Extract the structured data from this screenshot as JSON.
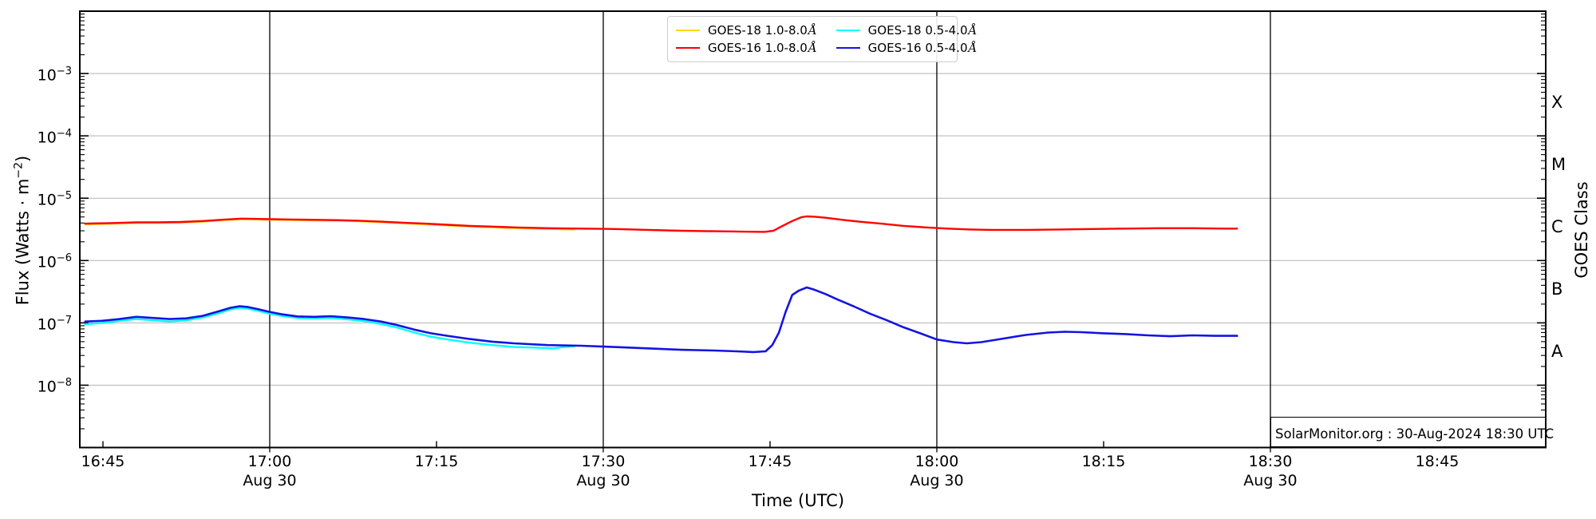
{
  "axes": {
    "xlabel": "Time (UTC)",
    "ylabel": {
      "prefix": "Flux (Watts · m",
      "sup": "−2",
      "suffix": ")"
    },
    "right_label": "GOES Class",
    "x_ticks": [
      {
        "t": 45,
        "label": "16:45",
        "sublabel": "",
        "major": false
      },
      {
        "t": 60,
        "label": "17:00",
        "sublabel": "Aug 30",
        "major": true
      },
      {
        "t": 75,
        "label": "17:15",
        "sublabel": "",
        "major": false
      },
      {
        "t": 90,
        "label": "17:30",
        "sublabel": "Aug 30",
        "major": true
      },
      {
        "t": 105,
        "label": "17:45",
        "sublabel": "",
        "major": false
      },
      {
        "t": 120,
        "label": "18:00",
        "sublabel": "Aug 30",
        "major": true
      },
      {
        "t": 135,
        "label": "18:15",
        "sublabel": "",
        "major": false
      },
      {
        "t": 150,
        "label": "18:30",
        "sublabel": "Aug 30",
        "major": true
      },
      {
        "t": 165,
        "label": "18:45",
        "sublabel": "",
        "major": false
      }
    ],
    "y_tick_exponents": [
      -3,
      -4,
      -5,
      -6,
      -7,
      -8
    ],
    "goes_classes": [
      {
        "label": "X",
        "mid_exponent": -3.5
      },
      {
        "label": "M",
        "mid_exponent": -4.5
      },
      {
        "label": "C",
        "mid_exponent": -5.5
      },
      {
        "label": "B",
        "mid_exponent": -6.5
      },
      {
        "label": "A",
        "mid_exponent": -7.5
      }
    ]
  },
  "legend": {
    "items": [
      {
        "label": "GOES-18 1.0-8.0",
        "angstrom": "Å",
        "color": "#ffd700",
        "key": "goes18-long"
      },
      {
        "label": "GOES-16 1.0-8.0",
        "angstrom": "Å",
        "color": "#ff0000",
        "key": "goes16-long"
      },
      {
        "label": "GOES-18 0.5-4.0",
        "angstrom": "Å",
        "color": "#00ffff",
        "key": "goes18-short"
      },
      {
        "label": "GOES-16 0.5-4.0",
        "angstrom": "Å",
        "color": "#1414e0",
        "key": "goes16-short"
      }
    ]
  },
  "watermark": "SolarMonitor.org : 30-Aug-2024 18:30 UTC",
  "colors": {
    "grid_horizontal": "#b3b3b3",
    "grid_vertical": "#000000",
    "frame": "#000000",
    "background": "#ffffff"
  },
  "chart_data": {
    "type": "line",
    "title": "",
    "xlabel": "Time (UTC)",
    "ylabel": "Flux (Watts · m⁻²)",
    "ylabel_right": "GOES Class",
    "x_unit": "decimal minutes after 16:00 UTC, Aug 30 2024",
    "y_unit": "W m^-2 (log scale)",
    "xlim_minutes": [
      43.4,
      174.6
    ],
    "ylim": [
      1e-09,
      0.01
    ],
    "grid": {
      "horizontal_decades": true,
      "vertical_30min": true
    },
    "legend_position": "top-center",
    "series": [
      {
        "name": "GOES-18 1.0-8.0Å",
        "color": "#ffd700",
        "width": 2.2,
        "points": [
          [
            43.4,
            3.8e-06
          ],
          [
            46,
            3.9e-06
          ],
          [
            48,
            4e-06
          ],
          [
            50,
            4e-06
          ],
          [
            52,
            4.05e-06
          ],
          [
            54,
            4.2e-06
          ],
          [
            56,
            4.45e-06
          ],
          [
            57.5,
            4.6e-06
          ],
          [
            59,
            4.55e-06
          ],
          [
            60,
            4.5e-06
          ],
          [
            62,
            4.45e-06
          ],
          [
            64,
            4.4e-06
          ],
          [
            66,
            4.35e-06
          ],
          [
            68,
            4.25e-06
          ],
          [
            70,
            4.1e-06
          ],
          [
            72,
            3.95e-06
          ],
          [
            74,
            3.8e-06
          ],
          [
            76,
            3.65e-06
          ],
          [
            78,
            3.5e-06
          ],
          [
            80,
            3.4e-06
          ],
          [
            82,
            3.3e-06
          ],
          [
            85,
            3.2e-06
          ],
          [
            87.4,
            3.15e-06
          ]
        ]
      },
      {
        "name": "GOES-16 1.0-8.0Å",
        "color": "#ff0000",
        "width": 2.4,
        "points": [
          [
            43.4,
            3.9e-06
          ],
          [
            46,
            4e-06
          ],
          [
            48,
            4.1e-06
          ],
          [
            50,
            4.1e-06
          ],
          [
            52,
            4.15e-06
          ],
          [
            54,
            4.3e-06
          ],
          [
            56,
            4.55e-06
          ],
          [
            57.5,
            4.7e-06
          ],
          [
            59,
            4.65e-06
          ],
          [
            60,
            4.6e-06
          ],
          [
            62,
            4.55e-06
          ],
          [
            64,
            4.5e-06
          ],
          [
            66,
            4.45e-06
          ],
          [
            68,
            4.35e-06
          ],
          [
            70,
            4.2e-06
          ],
          [
            72,
            4.05e-06
          ],
          [
            74,
            3.9e-06
          ],
          [
            76,
            3.75e-06
          ],
          [
            78,
            3.6e-06
          ],
          [
            80,
            3.5e-06
          ],
          [
            82,
            3.4e-06
          ],
          [
            85,
            3.3e-06
          ],
          [
            88,
            3.25e-06
          ],
          [
            91,
            3.2e-06
          ],
          [
            94,
            3.1e-06
          ],
          [
            97,
            3e-06
          ],
          [
            100,
            2.95e-06
          ],
          [
            103,
            2.9e-06
          ],
          [
            104.5,
            2.88e-06
          ],
          [
            105.3,
            3e-06
          ],
          [
            106,
            3.5e-06
          ],
          [
            107,
            4.3e-06
          ],
          [
            107.8,
            4.95e-06
          ],
          [
            108.3,
            5.1e-06
          ],
          [
            109,
            5.05e-06
          ],
          [
            110,
            4.85e-06
          ],
          [
            111.5,
            4.5e-06
          ],
          [
            113,
            4.2e-06
          ],
          [
            115,
            3.9e-06
          ],
          [
            117,
            3.6e-06
          ],
          [
            119,
            3.4e-06
          ],
          [
            121,
            3.25e-06
          ],
          [
            123,
            3.15e-06
          ],
          [
            125,
            3.1e-06
          ],
          [
            128,
            3.1e-06
          ],
          [
            131,
            3.15e-06
          ],
          [
            134,
            3.2e-06
          ],
          [
            137,
            3.25e-06
          ],
          [
            140,
            3.3e-06
          ],
          [
            143,
            3.3e-06
          ],
          [
            146,
            3.25e-06
          ],
          [
            147,
            3.25e-06
          ]
        ]
      },
      {
        "name": "GOES-18 0.5-4.0Å",
        "color": "#00ffff",
        "width": 2.4,
        "points": [
          [
            43.4,
            9.5e-08
          ],
          [
            45,
            1e-07
          ],
          [
            46.5,
            1.08e-07
          ],
          [
            48,
            1.15e-07
          ],
          [
            49.5,
            1.1e-07
          ],
          [
            51,
            1.05e-07
          ],
          [
            52.5,
            1.1e-07
          ],
          [
            54,
            1.22e-07
          ],
          [
            55.5,
            1.45e-07
          ],
          [
            56.5,
            1.65e-07
          ],
          [
            57.3,
            1.75e-07
          ],
          [
            58,
            1.7e-07
          ],
          [
            59,
            1.55e-07
          ],
          [
            60,
            1.4e-07
          ],
          [
            61,
            1.3e-07
          ],
          [
            62.5,
            1.2e-07
          ],
          [
            64,
            1.18e-07
          ],
          [
            65.5,
            1.2e-07
          ],
          [
            67,
            1.14e-07
          ],
          [
            68.5,
            1.07e-07
          ],
          [
            70,
            9.6e-08
          ],
          [
            71.5,
            8.4e-08
          ],
          [
            73,
            7e-08
          ],
          [
            74.5,
            6e-08
          ],
          [
            76,
            5.4e-08
          ],
          [
            78,
            4.8e-08
          ],
          [
            80,
            4.4e-08
          ],
          [
            82,
            4.1e-08
          ],
          [
            84,
            4e-08
          ],
          [
            85.5,
            3.9e-08
          ],
          [
            86.5,
            4.1e-08
          ],
          [
            87.4,
            4.2e-08
          ]
        ]
      },
      {
        "name": "GOES-16 0.5-4.0Å",
        "color": "#1414e0",
        "width": 2.6,
        "points": [
          [
            43.4,
            1.05e-07
          ],
          [
            45,
            1.08e-07
          ],
          [
            46.5,
            1.15e-07
          ],
          [
            48,
            1.25e-07
          ],
          [
            49.5,
            1.2e-07
          ],
          [
            51,
            1.15e-07
          ],
          [
            52.5,
            1.18e-07
          ],
          [
            54,
            1.3e-07
          ],
          [
            55.5,
            1.55e-07
          ],
          [
            56.5,
            1.75e-07
          ],
          [
            57.3,
            1.85e-07
          ],
          [
            58,
            1.8e-07
          ],
          [
            59,
            1.65e-07
          ],
          [
            60,
            1.5e-07
          ],
          [
            61,
            1.38e-07
          ],
          [
            62.5,
            1.27e-07
          ],
          [
            64,
            1.25e-07
          ],
          [
            65.5,
            1.28e-07
          ],
          [
            67,
            1.22e-07
          ],
          [
            68.5,
            1.15e-07
          ],
          [
            70,
            1.05e-07
          ],
          [
            71.5,
            9.2e-08
          ],
          [
            73,
            7.8e-08
          ],
          [
            74.5,
            6.8e-08
          ],
          [
            76,
            6.2e-08
          ],
          [
            78,
            5.5e-08
          ],
          [
            80,
            5e-08
          ],
          [
            82,
            4.7e-08
          ],
          [
            85,
            4.4e-08
          ],
          [
            88,
            4.3e-08
          ],
          [
            91,
            4.1e-08
          ],
          [
            94,
            3.9e-08
          ],
          [
            97,
            3.7e-08
          ],
          [
            100,
            3.6e-08
          ],
          [
            102,
            3.5e-08
          ],
          [
            103.5,
            3.4e-08
          ],
          [
            104.6,
            3.5e-08
          ],
          [
            105.2,
            4.4e-08
          ],
          [
            105.8,
            7e-08
          ],
          [
            106.4,
            1.5e-07
          ],
          [
            107,
            2.8e-07
          ],
          [
            107.6,
            3.3e-07
          ],
          [
            108.3,
            3.7e-07
          ],
          [
            109,
            3.4e-07
          ],
          [
            110,
            2.9e-07
          ],
          [
            111,
            2.4e-07
          ],
          [
            112.5,
            1.85e-07
          ],
          [
            114,
            1.4e-07
          ],
          [
            115.5,
            1.1e-07
          ],
          [
            117,
            8.5e-08
          ],
          [
            118.5,
            6.8e-08
          ],
          [
            120,
            5.4e-08
          ],
          [
            121.5,
            4.9e-08
          ],
          [
            122.7,
            4.7e-08
          ],
          [
            124,
            4.9e-08
          ],
          [
            126,
            5.6e-08
          ],
          [
            128,
            6.4e-08
          ],
          [
            130,
            7e-08
          ],
          [
            131.5,
            7.2e-08
          ],
          [
            133,
            7.1e-08
          ],
          [
            135,
            6.8e-08
          ],
          [
            137,
            6.6e-08
          ],
          [
            139,
            6.3e-08
          ],
          [
            141,
            6.1e-08
          ],
          [
            143,
            6.3e-08
          ],
          [
            145,
            6.2e-08
          ],
          [
            147,
            6.2e-08
          ]
        ]
      }
    ]
  }
}
